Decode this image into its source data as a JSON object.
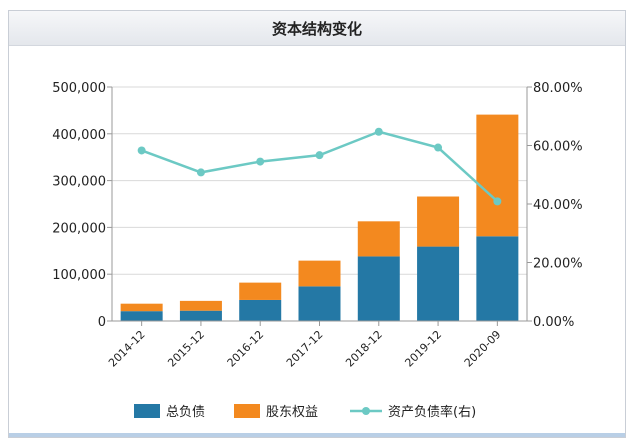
{
  "header": {
    "title": "资本结构变化"
  },
  "colors": {
    "debt": "#2478a5",
    "equity": "#f3891f",
    "ratio": "#6cc9c4",
    "grid": "#d9d9d9",
    "axis": "#999999"
  },
  "chart_data": {
    "type": "bar",
    "stacked": true,
    "categories": [
      "2014-12",
      "2015-12",
      "2016-12",
      "2017-12",
      "2018-12",
      "2019-12",
      "2020-09"
    ],
    "series": [
      {
        "name": "总负债",
        "axis": "left",
        "values": [
          21000,
          22000,
          45000,
          74000,
          138000,
          159000,
          181000
        ]
      },
      {
        "name": "股东权益",
        "axis": "left",
        "values": [
          16000,
          21000,
          37000,
          55000,
          75000,
          107000,
          260000
        ]
      },
      {
        "name": "资产负债率(右)",
        "type": "line",
        "axis": "right",
        "values": [
          58.3,
          50.8,
          54.5,
          56.7,
          64.7,
          59.3,
          40.9
        ]
      }
    ],
    "yleft": {
      "lim": [
        0,
        500000
      ],
      "ticks": [
        "0",
        "100,000",
        "200,000",
        "300,000",
        "400,000",
        "500,000"
      ]
    },
    "yright": {
      "lim": [
        0,
        80
      ],
      "ticks": [
        "0.00%",
        "20.00%",
        "40.00%",
        "60.00%",
        "80.00%"
      ]
    },
    "grid": true,
    "legend": "bottom"
  }
}
